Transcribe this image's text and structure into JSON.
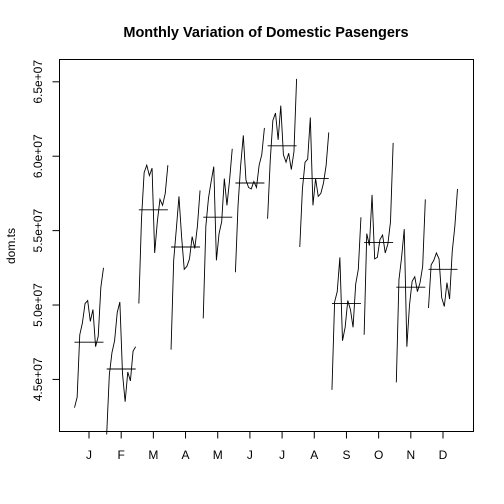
{
  "chart_data": {
    "type": "line",
    "subtype": "month-plot",
    "title": "Monthly Variation of Domestic Pasengers",
    "xlabel": "",
    "ylabel": "dom.ts",
    "ylim": [
      41500000,
      66500000
    ],
    "yticks": [
      45000000,
      50000000,
      55000000,
      60000000,
      65000000
    ],
    "ytick_labels": [
      "4.5e+07",
      "5.0e+07",
      "5.5e+07",
      "6.0e+07",
      "6.5e+07"
    ],
    "grid": false,
    "months": [
      {
        "label": "J",
        "mean": 47500000,
        "values": [
          43100000,
          43800000,
          48000000,
          48800000,
          50100000,
          50300000,
          48900000,
          49700000,
          47200000,
          47900000,
          51200000,
          52500000
        ]
      },
      {
        "label": "F",
        "mean": 45700000,
        "values": [
          41300000,
          45300000,
          46800000,
          47600000,
          49500000,
          50200000,
          45400000,
          43500000,
          45500000,
          44900000,
          46900000,
          47200000
        ]
      },
      {
        "label": "M",
        "mean": 56400000,
        "values": [
          50100000,
          55800000,
          58900000,
          59400000,
          58700000,
          59200000,
          53500000,
          55600000,
          57100000,
          56700000,
          57500000,
          59400000
        ]
      },
      {
        "label": "A",
        "mean": 53900000,
        "values": [
          47000000,
          53000000,
          55100000,
          57300000,
          54600000,
          52400000,
          52600000,
          53100000,
          54600000,
          53800000,
          55300000,
          57700000
        ]
      },
      {
        "label": "M",
        "mean": 55900000,
        "values": [
          49100000,
          55300000,
          57200000,
          58300000,
          59300000,
          53000000,
          54800000,
          55600000,
          58500000,
          56700000,
          58400000,
          60500000
        ]
      },
      {
        "label": "J",
        "mean": 58200000,
        "values": [
          52200000,
          56700000,
          59400000,
          61400000,
          58400000,
          57900000,
          57800000,
          58300000,
          57900000,
          59400000,
          60100000,
          61900000
        ]
      },
      {
        "label": "J",
        "mean": 60700000,
        "values": [
          55800000,
          59700000,
          62400000,
          62900000,
          61100000,
          63400000,
          60100000,
          59600000,
          60200000,
          59100000,
          60300000,
          65200000
        ]
      },
      {
        "label": "A",
        "mean": 58500000,
        "values": [
          53900000,
          57800000,
          59600000,
          59800000,
          62600000,
          56700000,
          58500000,
          57300000,
          57500000,
          58200000,
          59400000,
          61600000
        ]
      },
      {
        "label": "S",
        "mean": 50100000,
        "values": [
          44300000,
          50200000,
          50900000,
          53200000,
          47600000,
          48500000,
          50300000,
          49700000,
          48500000,
          51400000,
          52400000,
          55900000
        ]
      },
      {
        "label": "O",
        "mean": 54200000,
        "values": [
          48000000,
          54800000,
          54000000,
          57400000,
          53100000,
          53200000,
          54400000,
          54700000,
          53500000,
          54100000,
          55600000,
          60900000
        ]
      },
      {
        "label": "N",
        "mean": 51200000,
        "values": [
          44800000,
          51700000,
          53200000,
          55100000,
          47200000,
          50000000,
          51600000,
          51900000,
          50900000,
          51500000,
          52600000,
          57100000
        ]
      },
      {
        "label": "D",
        "mean": 52400000,
        "values": [
          49800000,
          52700000,
          53000000,
          53500000,
          53100000,
          50500000,
          49900000,
          51500000,
          50400000,
          53600000,
          55300000,
          57800000
        ]
      }
    ]
  }
}
